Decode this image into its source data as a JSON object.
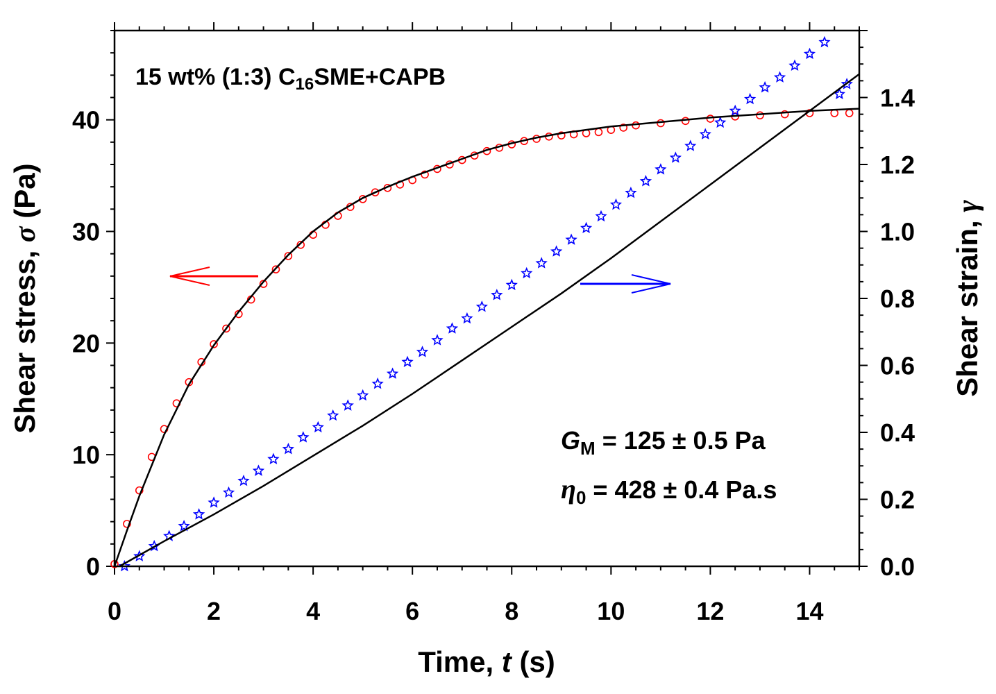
{
  "chart_data": {
    "type": "scatter",
    "title": "15 wt% (1:3) C16SME+CAPB",
    "title_parts": {
      "prefix": "15 wt% (1:3) C",
      "subscript": "16",
      "suffix": "SME+CAPB"
    },
    "xlabel": {
      "prefix": "Time, ",
      "symbol": "t",
      "unit": " (s)"
    },
    "ylabel_left": {
      "prefix": "Shear stress, ",
      "symbol": "σ",
      "unit": " (Pa)"
    },
    "ylabel_right": {
      "prefix": "Shear strain, ",
      "symbol": "γ"
    },
    "xlim": [
      0,
      15
    ],
    "ylim_left": [
      0,
      48
    ],
    "ylim_right": [
      0,
      1.6
    ],
    "x_ticks": [
      "0",
      "2",
      "4",
      "6",
      "8",
      "10",
      "12",
      "14"
    ],
    "y_left_ticks": [
      "0",
      "10",
      "20",
      "30",
      "40"
    ],
    "y_right_ticks": [
      "0.0",
      "0.2",
      "0.4",
      "0.6",
      "0.8",
      "1.0",
      "1.2",
      "1.4"
    ],
    "annotations": {
      "gm": {
        "symbol": "G",
        "sub": "M",
        "text": " = 125 ± 0.5  Pa"
      },
      "eta": {
        "symbol": "η",
        "sub": "0",
        "text": " = 428 ± 0.4  Pa.s"
      }
    },
    "arrows": [
      {
        "series": "Shear stress",
        "direction": "left",
        "color": "#ff0000"
      },
      {
        "series": "Shear strain",
        "direction": "right",
        "color": "#0000ff"
      }
    ],
    "series": [
      {
        "name": "Shear stress",
        "axis": "left",
        "marker": "circle",
        "color": "#ff0000",
        "x": [
          0.0,
          0.25,
          0.5,
          0.75,
          1.0,
          1.25,
          1.5,
          1.75,
          2.0,
          2.25,
          2.5,
          2.75,
          3.0,
          3.25,
          3.5,
          3.75,
          4.0,
          4.25,
          4.5,
          4.75,
          5.0,
          5.25,
          5.5,
          5.75,
          6.0,
          6.25,
          6.5,
          6.75,
          7.0,
          7.25,
          7.5,
          7.75,
          8.0,
          8.25,
          8.5,
          8.75,
          9.0,
          9.25,
          9.5,
          9.75,
          10.0,
          10.25,
          10.5,
          11.0,
          11.5,
          12.0,
          12.5,
          13.0,
          13.5,
          14.0,
          14.5,
          14.8
        ],
        "y": [
          0.2,
          3.8,
          6.8,
          9.8,
          12.3,
          14.6,
          16.5,
          18.3,
          19.9,
          21.3,
          22.6,
          23.9,
          25.3,
          26.6,
          27.8,
          28.8,
          29.7,
          30.6,
          31.4,
          32.2,
          32.9,
          33.5,
          33.9,
          34.2,
          34.6,
          35.1,
          35.6,
          36.0,
          36.4,
          36.8,
          37.2,
          37.5,
          37.8,
          38.1,
          38.3,
          38.5,
          38.6,
          38.7,
          38.8,
          38.9,
          39.1,
          39.3,
          39.5,
          39.7,
          39.9,
          40.1,
          40.3,
          40.4,
          40.5,
          40.6,
          40.6,
          40.6
        ]
      },
      {
        "name": "Shear stress fit",
        "axis": "left",
        "marker": "line",
        "color": "#000000",
        "x": [
          0.0,
          0.25,
          0.5,
          1.0,
          1.5,
          2.0,
          2.5,
          3.0,
          3.5,
          4.0,
          4.5,
          5.0,
          5.5,
          6.0,
          6.5,
          7.0,
          7.5,
          8.0,
          8.5,
          9.0,
          9.5,
          10.0,
          11.0,
          12.0,
          13.0,
          14.0,
          15.0
        ],
        "y": [
          0.0,
          3.2,
          6.3,
          11.8,
          16.3,
          19.8,
          22.8,
          25.5,
          27.9,
          30.0,
          31.7,
          33.0,
          34.0,
          34.9,
          35.7,
          36.5,
          37.3,
          37.9,
          38.4,
          38.8,
          39.1,
          39.4,
          39.8,
          40.2,
          40.5,
          40.8,
          41.0
        ]
      },
      {
        "name": "Shear strain",
        "axis": "right",
        "marker": "star",
        "color": "#0000ff",
        "x": [
          0.2,
          0.5,
          0.8,
          1.1,
          1.4,
          1.7,
          2.0,
          2.3,
          2.6,
          2.9,
          3.2,
          3.5,
          3.8,
          4.1,
          4.4,
          4.7,
          5.0,
          5.3,
          5.6,
          5.9,
          6.2,
          6.5,
          6.8,
          7.1,
          7.4,
          7.7,
          8.0,
          8.3,
          8.6,
          8.9,
          9.2,
          9.5,
          9.8,
          10.1,
          10.4,
          10.7,
          11.0,
          11.3,
          11.6,
          11.9,
          12.2,
          12.5,
          12.8,
          13.1,
          13.4,
          13.7,
          14.0,
          14.3,
          14.6,
          14.75
        ],
        "y": [
          0.0,
          0.03,
          0.06,
          0.09,
          0.12,
          0.155,
          0.19,
          0.22,
          0.255,
          0.285,
          0.32,
          0.35,
          0.385,
          0.415,
          0.45,
          0.48,
          0.51,
          0.545,
          0.575,
          0.61,
          0.64,
          0.675,
          0.71,
          0.74,
          0.775,
          0.81,
          0.84,
          0.875,
          0.905,
          0.94,
          0.975,
          1.01,
          1.045,
          1.08,
          1.115,
          1.15,
          1.185,
          1.22,
          1.255,
          1.29,
          1.325,
          1.36,
          1.395,
          1.43,
          1.46,
          1.495,
          1.53,
          1.565,
          1.41,
          1.44
        ]
      },
      {
        "name": "Shear strain fit",
        "axis": "right",
        "marker": "line",
        "color": "#000000",
        "x": [
          0.1,
          1.0,
          2.0,
          3.0,
          4.0,
          5.0,
          6.0,
          7.0,
          8.0,
          9.0,
          10.0,
          11.0,
          12.0,
          13.0,
          14.0,
          15.0
        ],
        "y": [
          0.0,
          0.075,
          0.155,
          0.24,
          0.33,
          0.42,
          0.515,
          0.615,
          0.715,
          0.815,
          0.92,
          1.03,
          1.14,
          1.25,
          1.36,
          1.47
        ]
      }
    ]
  }
}
